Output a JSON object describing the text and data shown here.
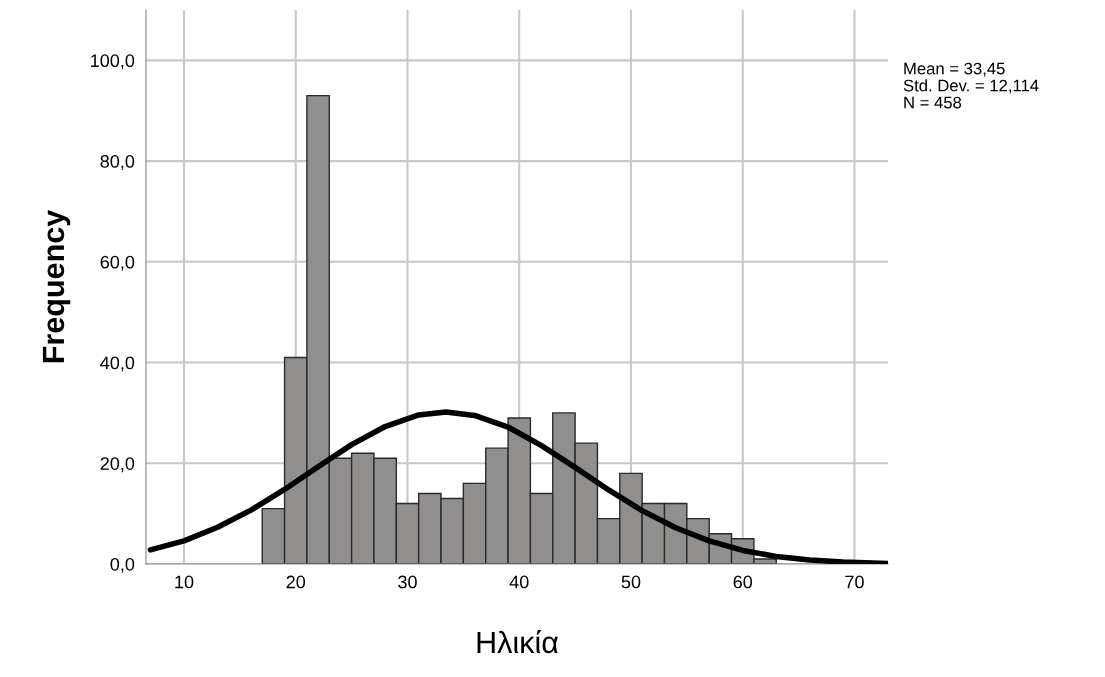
{
  "chart_data": {
    "type": "histogram",
    "xlabel": "Ηλικία",
    "ylabel": "Frequency",
    "bins": [
      17,
      19,
      21,
      23,
      25,
      27,
      29,
      31,
      33,
      35,
      37,
      39,
      41,
      43,
      45,
      47,
      49,
      51,
      53,
      55,
      57,
      59,
      61,
      63
    ],
    "values": [
      11,
      41,
      93,
      21,
      22,
      21,
      12,
      14,
      13,
      16,
      23,
      29,
      14,
      30,
      24,
      9,
      18,
      12,
      12,
      9,
      6,
      5,
      1
    ],
    "color": "#918e8e",
    "series": [
      {
        "type": "line",
        "color": "#000000",
        "x": [
          7,
          10,
          13,
          16,
          19,
          22,
          25,
          28,
          31,
          33.45,
          36,
          39,
          42,
          45,
          48,
          51,
          54,
          57,
          60,
          63,
          66,
          69,
          73
        ],
        "values": [
          2.8,
          4.6,
          7.3,
          10.7,
          14.8,
          19.3,
          23.7,
          27.3,
          29.6,
          30.2,
          29.5,
          27.2,
          23.5,
          19.2,
          14.7,
          10.6,
          7.2,
          4.6,
          2.7,
          1.5,
          0.8,
          0.4,
          0.1
        ]
      }
    ],
    "xlim": [
      6.6,
      73
    ],
    "ylim": [
      0,
      110
    ],
    "xticks": [
      10,
      20,
      30,
      40,
      50,
      60,
      70
    ],
    "yticks": [
      {
        "value": 0,
        "label": "0,0"
      },
      {
        "value": 20,
        "label": "20,0"
      },
      {
        "value": 40,
        "label": "40,0"
      },
      {
        "value": 60,
        "label": "60,0"
      },
      {
        "value": 80,
        "label": "80,0"
      },
      {
        "value": 100,
        "label": "100,0"
      }
    ],
    "grid": true,
    "annotations": [
      "Mean = 33,45",
      "Std. Dev. = 12,114",
      "N = 458"
    ]
  }
}
